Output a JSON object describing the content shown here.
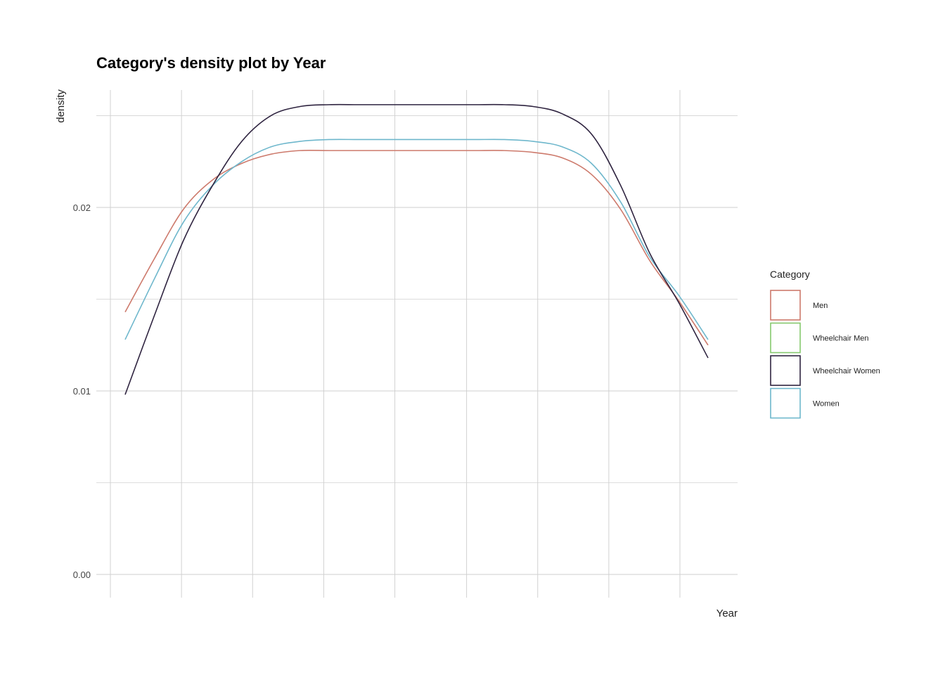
{
  "chart_data": {
    "type": "line",
    "title": "Category's density plot by Year",
    "xlabel": "Year",
    "ylabel": "density",
    "xlim": [
      0,
      1
    ],
    "ylim": [
      0,
      0.0264
    ],
    "y_ticks": [
      0.0,
      0.01,
      0.02
    ],
    "y_tick_labels": [
      "0.00",
      "0.01",
      "0.02"
    ],
    "y_minor_gridlines": [
      0.005,
      0.015,
      0.025
    ],
    "x_gridlines": [
      0.0,
      0.111,
      0.222,
      0.333,
      0.444,
      0.556,
      0.667,
      0.778,
      0.889
    ],
    "grid": true,
    "legend": {
      "title": "Category",
      "placement": "right",
      "entries": [
        {
          "label": "Men",
          "color": "#cd7a6c"
        },
        {
          "label": "Wheelchair Men",
          "color": "#86c96e"
        },
        {
          "label": "Wheelchair Women",
          "color": "#2f2440"
        },
        {
          "label": "Women",
          "color": "#6eb7cc"
        }
      ]
    },
    "x": [
      0.0,
      0.05,
      0.1,
      0.15,
      0.2,
      0.25,
      0.3,
      0.35,
      0.4,
      0.45,
      0.5,
      0.55,
      0.6,
      0.65,
      0.7,
      0.75,
      0.8,
      0.85,
      0.9,
      0.95,
      1.0
    ],
    "series": [
      {
        "name": "Men",
        "color": "#cd7a6c",
        "values": [
          0.0143,
          0.0172,
          0.0199,
          0.0215,
          0.0224,
          0.0229,
          0.0231,
          0.0231,
          0.0231,
          0.0231,
          0.0231,
          0.0231,
          0.0231,
          0.0231,
          0.023,
          0.0227,
          0.0218,
          0.0199,
          0.0171,
          0.0149,
          0.0125
        ]
      },
      {
        "name": "Women",
        "color": "#6eb7cc",
        "values": [
          0.0128,
          0.0161,
          0.0192,
          0.0212,
          0.0225,
          0.0233,
          0.0236,
          0.0237,
          0.0237,
          0.0237,
          0.0237,
          0.0237,
          0.0237,
          0.0237,
          0.0236,
          0.0233,
          0.0224,
          0.0203,
          0.0173,
          0.0152,
          0.0128
        ]
      },
      {
        "name": "Wheelchair Women",
        "color": "#2f2440",
        "values": [
          0.0098,
          0.0141,
          0.0182,
          0.0212,
          0.0236,
          0.025,
          0.0255,
          0.0256,
          0.0256,
          0.0256,
          0.0256,
          0.0256,
          0.0256,
          0.0256,
          0.0255,
          0.0251,
          0.024,
          0.0212,
          0.0175,
          0.0148,
          0.0118
        ]
      }
    ]
  }
}
